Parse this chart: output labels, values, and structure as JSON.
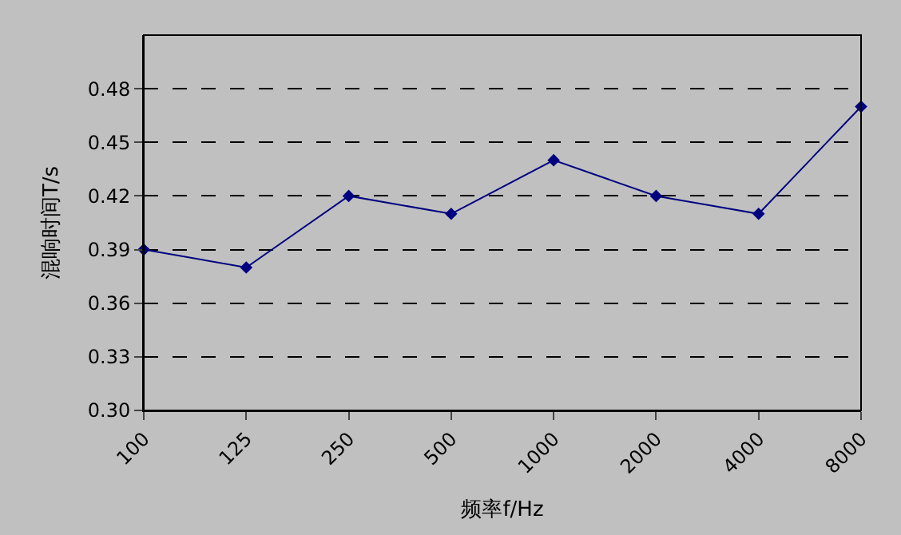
{
  "chart_data": {
    "type": "line",
    "xlabel": "频率f/Hz",
    "ylabel": "混响时间T/s",
    "categories": [
      "100",
      "125",
      "250",
      "500",
      "1000",
      "2000",
      "4000",
      "8000"
    ],
    "series": [
      {
        "color": "#000080",
        "values": [
          0.39,
          0.38,
          0.42,
          0.41,
          0.44,
          0.42,
          0.41,
          0.47
        ]
      }
    ],
    "ylim": [
      0.3,
      0.51
    ],
    "yticks": [
      {
        "value": 0.3,
        "label": "0.30"
      },
      {
        "value": 0.33,
        "label": "0.33"
      },
      {
        "value": 0.36,
        "label": "0.36"
      },
      {
        "value": 0.39,
        "label": "0.39"
      },
      {
        "value": 0.42,
        "label": "0.42"
      },
      {
        "value": 0.45,
        "label": "0.45"
      },
      {
        "value": 0.48,
        "label": "0.48"
      }
    ],
    "grid": "y",
    "marker": "diamond",
    "line_style": "solid",
    "legend": false
  }
}
